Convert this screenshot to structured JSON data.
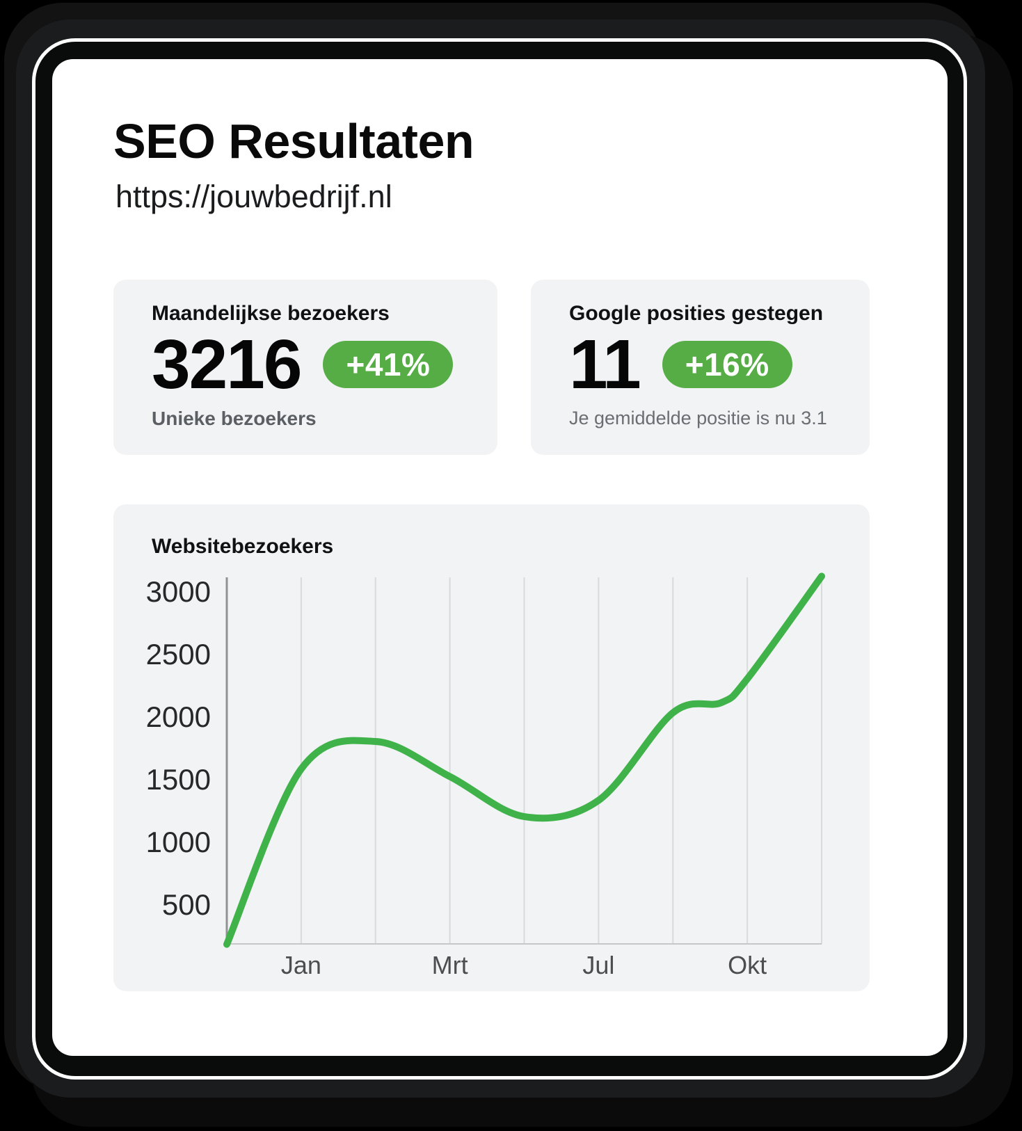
{
  "page": {
    "title": "SEO Resultaten",
    "url": "https://jouwbedrijf.nl"
  },
  "stats": [
    {
      "title": "Maandelijkse bezoekers",
      "value": "3216",
      "badge": "+41%",
      "subtitle": "Unieke bezoekers"
    },
    {
      "title": "Google posities gestegen",
      "value": "11",
      "badge": "+16%",
      "subtitle": "Je gemiddelde positie is nu 3.1"
    }
  ],
  "colors": {
    "badge_green": "#56ad46",
    "line_green": "#3fb24a",
    "card_bg": "#f1f3f4"
  },
  "chart_data": {
    "type": "line",
    "title": "Websitebezoekers",
    "series_name": "Websitebezoekers",
    "ylim": [
      0,
      3140
    ],
    "y_ticks": [
      3000,
      2500,
      2000,
      1500,
      1000,
      500
    ],
    "grid_count": 8,
    "grid": "vertical",
    "x_ticks": [
      {
        "grid": 1,
        "label": "Jan"
      },
      {
        "grid": 3,
        "label": "Mrt"
      },
      {
        "grid": 5,
        "label": "Jul"
      },
      {
        "grid": 7,
        "label": "Okt"
      }
    ],
    "points": [
      [
        0,
        180
      ],
      [
        1,
        1580
      ],
      [
        2,
        1800
      ],
      [
        3,
        1520
      ],
      [
        4,
        1200
      ],
      [
        5,
        1330
      ],
      [
        6,
        2030
      ],
      [
        6.65,
        2110
      ],
      [
        7,
        2300
      ],
      [
        8,
        3120
      ]
    ]
  }
}
